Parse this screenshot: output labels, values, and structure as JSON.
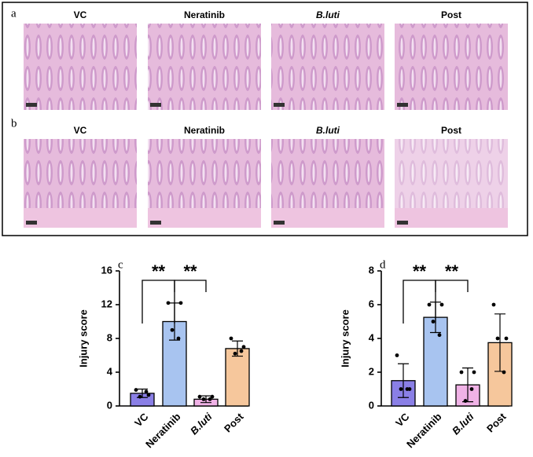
{
  "figure": {
    "panel_labels": [
      "a",
      "b",
      "c",
      "d"
    ],
    "image_rows": [
      {
        "columns": [
          "VC",
          "Neratinib",
          "B.luti",
          "Post"
        ]
      },
      {
        "columns": [
          "VC",
          "Neratinib",
          "B.luti",
          "Post"
        ]
      }
    ]
  },
  "chart_data": [
    {
      "type": "bar",
      "ylabel": "Injury score",
      "categories": [
        "VC",
        "Neratinib",
        "B.luti",
        "Post"
      ],
      "values": [
        1.5,
        10,
        0.8,
        6.8
      ],
      "errors": [
        0.5,
        2.2,
        0.4,
        0.9
      ],
      "points": [
        [
          1.9,
          1.3,
          1.1,
          1.7
        ],
        [
          12.2,
          12.2,
          9,
          8
        ],
        [
          1.1,
          1.1,
          0.8,
          0.8
        ],
        [
          8,
          7,
          6.2,
          6.5
        ]
      ],
      "colors": [
        "#8a7fe6",
        "#a8c4f0",
        "#f0b2e6",
        "#f6c79c"
      ],
      "ylim": [
        0,
        16
      ],
      "yticks": [
        0,
        4,
        8,
        12,
        16
      ],
      "annotations": [
        {
          "label": "**",
          "pair": [
            "VC",
            "Neratinib"
          ]
        },
        {
          "label": "**",
          "pair": [
            "Neratinib",
            "B.luti"
          ]
        }
      ]
    },
    {
      "type": "bar",
      "ylabel": "Injury score",
      "categories": [
        "VC",
        "Neratinib",
        "B.luti",
        "Post"
      ],
      "values": [
        1.5,
        5.25,
        1.25,
        3.75
      ],
      "errors": [
        1,
        0.9,
        1,
        1.7
      ],
      "points": [
        [
          3,
          1,
          1,
          1
        ],
        [
          6,
          6,
          5,
          4.2
        ],
        [
          2,
          2,
          0.3,
          1
        ],
        [
          6,
          4,
          4,
          2
        ]
      ],
      "colors": [
        "#8a7fe6",
        "#a8c4f0",
        "#f0b2e6",
        "#f6c79c"
      ],
      "ylim": [
        0,
        8
      ],
      "yticks": [
        0,
        2,
        4,
        6,
        8
      ],
      "annotations": [
        {
          "label": "**",
          "pair": [
            "VC",
            "Neratinib"
          ]
        },
        {
          "label": "**",
          "pair": [
            "Neratinib",
            "B.luti"
          ]
        }
      ]
    }
  ]
}
